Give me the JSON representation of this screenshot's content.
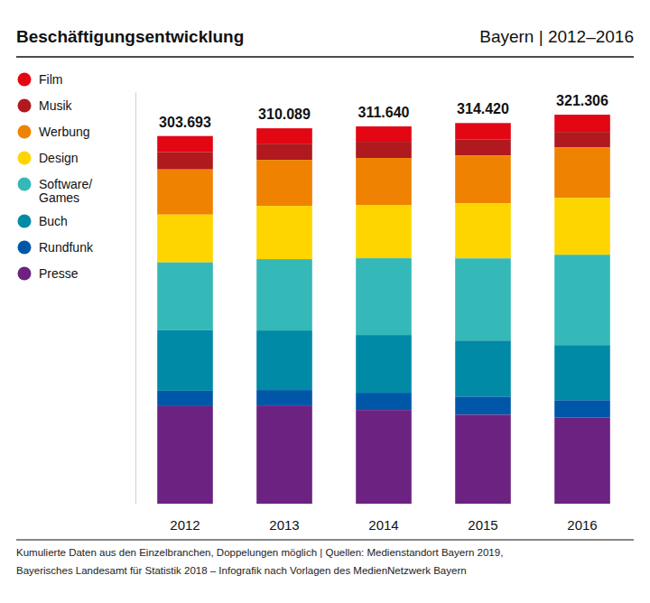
{
  "chart_data": {
    "type": "bar",
    "title": "Beschäftigungsentwicklung",
    "subtitle": "Bayern | 2012–2016",
    "notes": [
      "Kumulierte Daten aus den Einzelbranchen, Doppelungen möglich | Quellen: Medienstandort Bayern 2019,",
      "Bayerisches Landesamt für Statistik 2018 – Infografik nach Vorlagen des MedienNetzwerk Bayern"
    ],
    "categories": [
      "2012",
      "2013",
      "2014",
      "2015",
      "2016"
    ],
    "stacked": true,
    "tick_labels": "x",
    "grid": false,
    "legend": "top-left",
    "ylim": [
      0,
      340000
    ],
    "yticks": [],
    "totals": {
      "values": [
        303693,
        310089,
        311640,
        314420,
        321306
      ],
      "value_labels": [
        "303.693",
        "310.089",
        "311.640",
        "314.420",
        "321.306"
      ]
    },
    "series": [
      {
        "name": "Film",
        "color": "#e30613",
        "values": [
          13400,
          12700,
          12700,
          13400,
          14200
        ]
      },
      {
        "name": "Musik",
        "color": "#b0191e",
        "values": [
          14200,
          13400,
          13400,
          13400,
          12700
        ]
      },
      {
        "name": "Werbung",
        "color": "#ef8200",
        "values": [
          37300,
          38000,
          38800,
          39500,
          41800
        ]
      },
      {
        "name": "Design",
        "color": "#ffd500",
        "values": [
          39500,
          44000,
          44000,
          45500,
          47000
        ]
      },
      {
        "name": "Software/ Games",
        "color": "#35b8b8",
        "values": [
          56000,
          58900,
          63400,
          67900,
          74600
        ]
      },
      {
        "name": "Buch",
        "color": "#008aa6",
        "values": [
          50000,
          49200,
          47700,
          46300,
          45500
        ]
      },
      {
        "name": "Rundfunk",
        "color": "#0057a8",
        "values": [
          12700,
          12700,
          14200,
          14900,
          14200
        ]
      },
      {
        "name": "Presse",
        "color": "#6c2280",
        "values": [
          80593,
          81189,
          77440,
          73520,
          71306
        ]
      }
    ]
  }
}
